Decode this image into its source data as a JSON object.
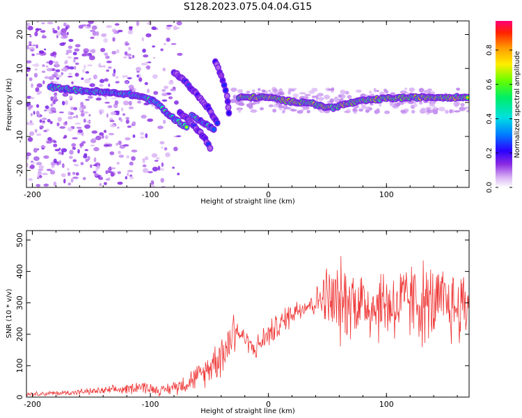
{
  "figure_title": "S128.2023.075.04.04.G15",
  "chart_data": [
    {
      "type": "heatmap",
      "title": "",
      "xlabel": "Height of straight line (km)",
      "ylabel": "Frequency (Hz)",
      "xlim": [
        -205,
        170
      ],
      "ylim": [
        -25,
        24
      ],
      "xticks": [
        -200,
        -100,
        0,
        100
      ],
      "yticks": [
        -20,
        -10,
        0,
        10,
        20
      ],
      "grid": false,
      "colorbar": {
        "label": "Normalized spectral amplitude",
        "range": [
          0,
          0.97
        ],
        "ticks": [
          0.0,
          0.2,
          0.4,
          0.6,
          0.8
        ],
        "tick_labels": [
          "0.0",
          "0.2",
          "0.4",
          "0.6",
          "0.8"
        ]
      },
      "traces": [
        {
          "points": [
            [
              -185,
              4.5
            ],
            [
              -160,
              3.5
            ],
            [
              -140,
              3.0
            ],
            [
              -120,
              2.5
            ],
            [
              -105,
              1.5
            ],
            [
              -95,
              0
            ],
            [
              -85,
              -3.5
            ],
            [
              -75,
              -6
            ],
            [
              -68,
              -7.5
            ]
          ],
          "amplitude": 0.55
        },
        {
          "points": [
            [
              -80,
              9
            ],
            [
              -70,
              6
            ],
            [
              -60,
              2
            ],
            [
              -50,
              -2
            ],
            [
              -42,
              -7
            ]
          ],
          "amplitude": 0.25
        },
        {
          "points": [
            [
              -75,
              -3
            ],
            [
              -65,
              -6
            ],
            [
              -55,
              -10
            ],
            [
              -48,
              -14
            ]
          ],
          "amplitude": 0.2
        },
        {
          "points": [
            [
              -65,
              -4
            ],
            [
              -55,
              -6
            ],
            [
              -45,
              -8
            ]
          ],
          "amplitude": 0.5
        },
        {
          "points": [
            [
              -45,
              12
            ],
            [
              -40,
              8
            ],
            [
              -35,
              2
            ],
            [
              -33,
              -5
            ]
          ],
          "amplitude": 0.2
        },
        {
          "points": [
            [
              -25,
              1.5
            ],
            [
              -10,
              1.5
            ],
            [
              0,
              1.5
            ],
            [
              10,
              0.8
            ],
            [
              20,
              0.2
            ],
            [
              35,
              0
            ],
            [
              45,
              -1.2
            ],
            [
              55,
              -1.5
            ],
            [
              65,
              -0.5
            ],
            [
              80,
              0.5
            ],
            [
              100,
              1.2
            ],
            [
              130,
              1.5
            ],
            [
              170,
              1.5
            ]
          ],
          "amplitude": 0.85
        }
      ],
      "noise_region_x": [
        -205,
        -105
      ]
    },
    {
      "type": "line",
      "title": "",
      "xlabel": "Height of straight line (km)",
      "ylabel": "SNR (10 * v/v)",
      "xlim": [
        -205,
        170
      ],
      "ylim": [
        0,
        530
      ],
      "xticks": [
        -200,
        -100,
        0,
        100
      ],
      "yticks": [
        0,
        100,
        200,
        300,
        400,
        500
      ],
      "grid": false,
      "series": [
        {
          "color": "#ee3333",
          "x": [
            -205,
            -180,
            -150,
            -120,
            -110,
            -90,
            -70,
            -55,
            -45,
            -35,
            -28,
            -25,
            -20,
            -12,
            -5,
            0,
            10,
            20,
            30,
            40,
            45,
            50,
            55,
            60,
            70,
            80,
            90,
            100,
            110,
            120,
            130,
            140,
            150,
            160,
            170
          ],
          "y": [
            10,
            12,
            18,
            25,
            35,
            20,
            45,
            75,
            120,
            160,
            230,
            200,
            190,
            150,
            180,
            200,
            230,
            270,
            290,
            300,
            320,
            310,
            300,
            300,
            310,
            300,
            290,
            300,
            290,
            310,
            300,
            290,
            300,
            280,
            310
          ],
          "spread": [
            6,
            8,
            10,
            15,
            20,
            15,
            30,
            40,
            60,
            80,
            90,
            20,
            30,
            30,
            40,
            40,
            40,
            40,
            35,
            40,
            70,
            110,
            130,
            130,
            110,
            120,
            110,
            120,
            120,
            120,
            130,
            120,
            110,
            120,
            110
          ]
        }
      ]
    }
  ]
}
